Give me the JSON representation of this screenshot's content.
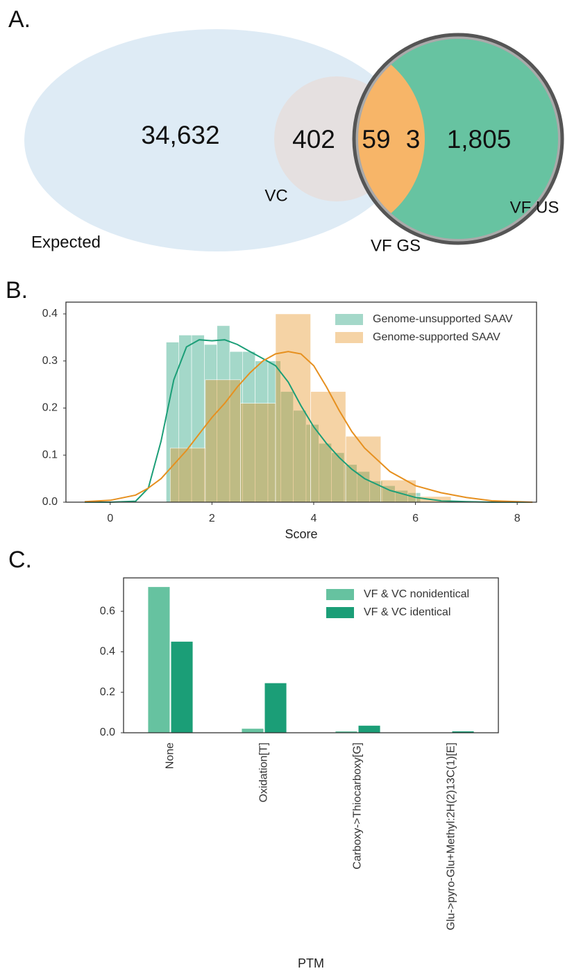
{
  "chart_data": [
    {
      "type": "venn",
      "panel": "A.",
      "sets": [
        {
          "name": "Expected",
          "color": "#deebf5"
        },
        {
          "name": "VC",
          "color": "#e5e0e0"
        },
        {
          "name": "VF GS",
          "color": "#f7b568"
        },
        {
          "name": "VF US",
          "color": "#67c3a1"
        }
      ],
      "values": [
        34632,
        402,
        59,
        3,
        1805
      ],
      "value_labels": [
        "34,632",
        "402",
        "59",
        "3",
        "1,805"
      ]
    },
    {
      "type": "histogram",
      "panel": "B.",
      "xlabel": "Score",
      "xlim": [
        -0.87,
        8.38
      ],
      "ylim": [
        0,
        0.425
      ],
      "xticks": [
        0,
        2,
        4,
        6,
        8
      ],
      "yticks": [
        {
          "value": 0,
          "label": "0.0"
        },
        0.1,
        0.2,
        0.3,
        0.4
      ],
      "legend": "upper right",
      "kde_x": [
        -0.5,
        0,
        0.5,
        0.75,
        1,
        1.25,
        1.5,
        1.75,
        2,
        2.25,
        2.5,
        2.75,
        3,
        3.25,
        3.5,
        3.75,
        4,
        4.25,
        4.5,
        4.75,
        5,
        5.5,
        6,
        6.5,
        7,
        7.5,
        8.3
      ],
      "series": [
        {
          "name": "Genome-unsupported SAAV",
          "color": "#1b9e77",
          "bins": [
            1.1,
            1.35,
            1.6,
            1.85,
            2.1,
            2.35,
            2.6,
            2.85,
            3.1,
            3.35,
            3.6,
            3.85,
            4.1,
            4.35,
            4.6,
            4.85,
            5.1,
            5.35,
            5.6,
            5.85,
            6.1
          ],
          "values": [
            0.34,
            0.355,
            0.355,
            0.335,
            0.375,
            0.32,
            0.32,
            0.3,
            0.3,
            0.235,
            0.195,
            0.165,
            0.125,
            0.105,
            0.08,
            0.065,
            0.045,
            0.035,
            0.025,
            0.02
          ],
          "kde": [
            0,
            0,
            0.002,
            0.03,
            0.13,
            0.26,
            0.33,
            0.345,
            0.343,
            0.345,
            0.335,
            0.32,
            0.305,
            0.29,
            0.255,
            0.205,
            0.16,
            0.125,
            0.095,
            0.07,
            0.05,
            0.025,
            0.01,
            0.003,
            0.001,
            0,
            0
          ]
        },
        {
          "name": "Genome-supported SAAV",
          "color": "#e6901f",
          "bins": [
            1.18,
            1.87,
            2.56,
            3.25,
            3.94,
            4.63,
            5.32,
            6.01,
            6.7
          ],
          "values": [
            0.115,
            0.26,
            0.21,
            0.4,
            0.235,
            0.14,
            0.047,
            0.012
          ],
          "kde": [
            0.001,
            0.004,
            0.015,
            0.03,
            0.05,
            0.08,
            0.11,
            0.145,
            0.18,
            0.21,
            0.245,
            0.275,
            0.3,
            0.315,
            0.32,
            0.315,
            0.29,
            0.245,
            0.195,
            0.15,
            0.115,
            0.065,
            0.035,
            0.02,
            0.01,
            0.003,
            0
          ]
        }
      ]
    },
    {
      "type": "bar",
      "panel": "C.",
      "xlabel": "PTM",
      "categories": [
        "None",
        "Oxidation[T]",
        "Carboxy->Thiocarboxy[G]",
        "Glu->pyro-Glu+Methyl:2H(2)13C(1)[E]"
      ],
      "ylim": [
        0,
        0.765
      ],
      "yticks": [
        {
          "value": 0,
          "label": "0.0"
        },
        0.2,
        0.4,
        0.6
      ],
      "legend": "upper right",
      "series": [
        {
          "name": "VF & VC  nonidentical",
          "color": "#66c2a0",
          "values": [
            0.72,
            0.02,
            0.007,
            0
          ]
        },
        {
          "name": "VF & VC identical",
          "color": "#1b9e77",
          "values": [
            0.45,
            0.245,
            0.035,
            0.007
          ]
        }
      ]
    }
  ]
}
